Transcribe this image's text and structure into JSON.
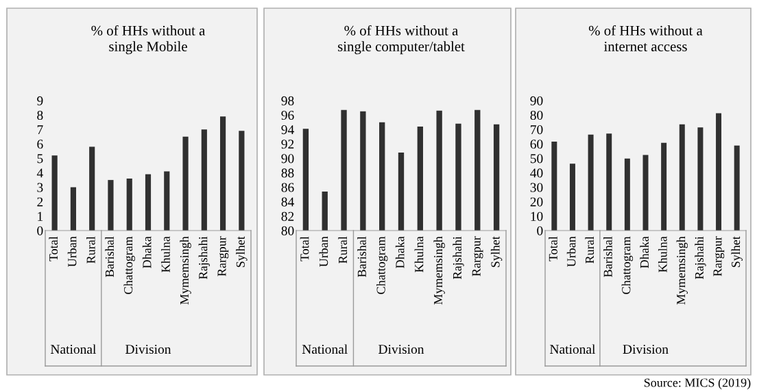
{
  "chart_data": [
    {
      "type": "bar",
      "title": "% of HHs without a\nsingle Mobile",
      "categories": [
        "Total",
        "Urban",
        "Rural",
        "Barishal",
        "Chattogram",
        "Dhaka",
        "Khulna",
        "Mymemsingh",
        "Rajshahi",
        "Rargpur",
        "Sylhet"
      ],
      "values": [
        5.2,
        3.0,
        5.8,
        3.5,
        3.6,
        3.9,
        4.1,
        6.5,
        7.0,
        7.9,
        6.9
      ],
      "color": "#303030",
      "ylim": [
        0,
        9
      ],
      "yticks": [
        0,
        1,
        2,
        3,
        4,
        5,
        6,
        7,
        8,
        9
      ],
      "grid": false,
      "annotations": [
        "National",
        "Division"
      ]
    },
    {
      "type": "bar",
      "title": "% of HHs without a\nsingle computer/tablet",
      "categories": [
        "Total",
        "Urban",
        "Rural",
        "Barishal",
        "Chattogram",
        "Dhaka",
        "Khulna",
        "Mymemsingh",
        "Rajshahi",
        "Rargpur",
        "Sylhet"
      ],
      "values": [
        94.1,
        85.4,
        96.7,
        96.5,
        95.0,
        90.8,
        94.4,
        96.6,
        94.8,
        96.7,
        94.7
      ],
      "color": "#303030",
      "ylim": [
        80,
        98
      ],
      "yticks": [
        80,
        82,
        84,
        86,
        88,
        90,
        92,
        94,
        96,
        98
      ],
      "grid": false,
      "annotations": [
        "National",
        "Division"
      ]
    },
    {
      "type": "bar",
      "title": "% of HHs without a\ninternet access",
      "categories": [
        "Total",
        "Urban",
        "Rural",
        "Barishal",
        "Chattogram",
        "Dhaka",
        "Khulna",
        "Mymemsingh",
        "Rajshahi",
        "Rargpur",
        "Sylhet"
      ],
      "values": [
        61.6,
        46.3,
        66.4,
        67.1,
        49.8,
        52.4,
        60.8,
        73.5,
        71.4,
        81.2,
        58.8
      ],
      "color": "#303030",
      "ylim": [
        0,
        90
      ],
      "yticks": [
        0,
        10,
        20,
        30,
        40,
        50,
        60,
        70,
        80,
        90
      ],
      "grid": false,
      "annotations": [
        "National",
        "Division",
        "Source: MICS (2019)"
      ]
    }
  ]
}
